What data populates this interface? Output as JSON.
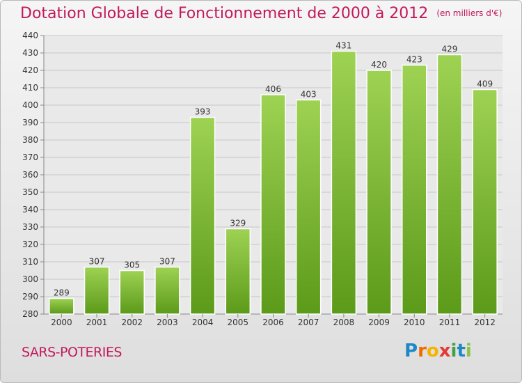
{
  "title": "Dotation Globale de Fonctionnement de 2000 à 2012",
  "unit_note": "(en milliers d'€)",
  "commune": "SARS-POTERIES",
  "logo_text": "Proxiti",
  "colors": {
    "bar_top": "#9ed253",
    "bar_bottom": "#5c9a1a",
    "title": "#c2185b",
    "grid": "#c8c8c8"
  },
  "chart_data": {
    "type": "bar",
    "title": "Dotation Globale de Fonctionnement de 2000 à 2012",
    "subtitle": "(en milliers d'€)",
    "categories": [
      "2000",
      "2001",
      "2002",
      "2003",
      "2004",
      "2005",
      "2006",
      "2007",
      "2008",
      "2009",
      "2010",
      "2011",
      "2012"
    ],
    "values": [
      289,
      307,
      305,
      307,
      393,
      329,
      406,
      403,
      431,
      420,
      423,
      429,
      409
    ],
    "ylim": [
      280,
      440
    ],
    "yticks": [
      280,
      290,
      300,
      310,
      320,
      330,
      340,
      350,
      360,
      370,
      380,
      390,
      400,
      410,
      420,
      430,
      440
    ],
    "grid": true,
    "xlabel": "",
    "ylabel": ""
  }
}
